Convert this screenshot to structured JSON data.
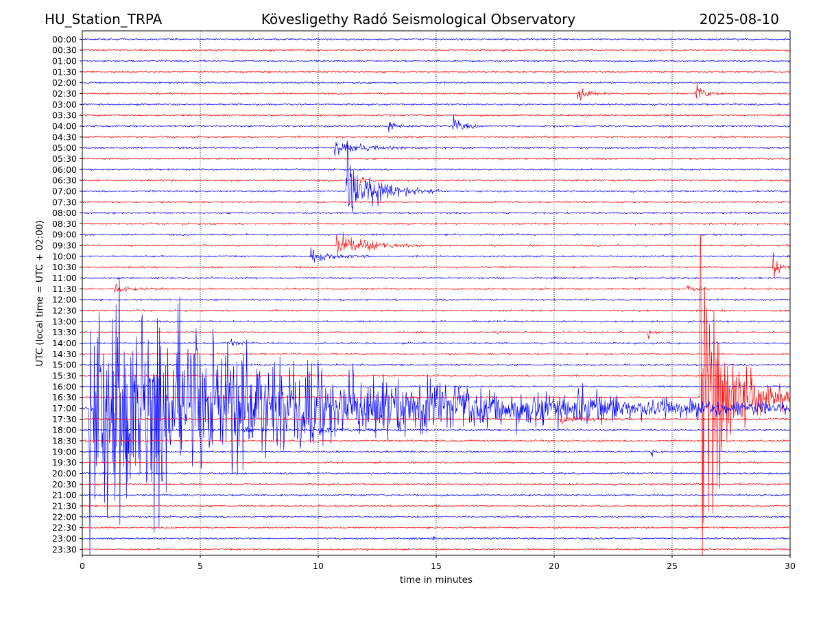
{
  "header": {
    "station": "HU_Station_TRPA",
    "observatory": "Kövesligethy Radó Seismological Observatory",
    "date": "2025-08-10"
  },
  "chart_data": {
    "type": "line",
    "title": "Kövesligethy Radó Seismological Observatory",
    "xlabel": "time in minutes",
    "ylabel": "UTC (local time = UTC + 02:00)",
    "xlim": [
      0,
      30
    ],
    "xticks": [
      "0",
      "5",
      "10",
      "15",
      "20",
      "25",
      "30"
    ],
    "xtick_values": [
      0,
      5,
      10,
      15,
      20,
      25,
      30
    ],
    "vertical_grid": "dotted",
    "trace_colors": [
      "#0000ff",
      "#ff0000"
    ],
    "rows": [
      "00:00",
      "00:30",
      "01:00",
      "01:30",
      "02:00",
      "02:30",
      "03:00",
      "03:30",
      "04:00",
      "04:30",
      "05:00",
      "05:30",
      "06:00",
      "06:30",
      "07:00",
      "07:30",
      "08:00",
      "08:30",
      "09:00",
      "09:30",
      "10:00",
      "10:30",
      "11:00",
      "11:30",
      "12:00",
      "12:30",
      "13:00",
      "13:30",
      "14:00",
      "14:30",
      "15:00",
      "15:30",
      "16:00",
      "16:30",
      "17:00",
      "17:30",
      "18:00",
      "18:30",
      "19:00",
      "19:30",
      "20:00",
      "20:30",
      "21:00",
      "21:30",
      "22:00",
      "22:30",
      "23:00",
      "23:30"
    ],
    "events": [
      {
        "row": "02:30",
        "start_min": 21.0,
        "amplitude_rows": 1.0,
        "duration_min": 1.4
      },
      {
        "row": "02:30",
        "start_min": 26.0,
        "amplitude_rows": 0.9,
        "duration_min": 1.3
      },
      {
        "row": "04:00",
        "start_min": 13.0,
        "amplitude_rows": 0.4,
        "duration_min": 1.2
      },
      {
        "row": "04:00",
        "start_min": 15.7,
        "amplitude_rows": 0.7,
        "duration_min": 1.5
      },
      {
        "row": "05:00",
        "start_min": 10.7,
        "amplitude_rows": 0.7,
        "duration_min": 4.0
      },
      {
        "row": "07:00",
        "start_min": 11.2,
        "amplitude_rows": 3.2,
        "duration_min": 4.0
      },
      {
        "row": "06:30",
        "start_min": 11.8,
        "amplitude_rows": 0.3,
        "duration_min": 1.2
      },
      {
        "row": "09:30",
        "start_min": 10.8,
        "amplitude_rows": 1.6,
        "duration_min": 3.5
      },
      {
        "row": "10:00",
        "start_min": 9.7,
        "amplitude_rows": 0.8,
        "duration_min": 2.5
      },
      {
        "row": "10:30",
        "start_min": 29.3,
        "amplitude_rows": 1.2,
        "duration_min": 0.7
      },
      {
        "row": "11:30",
        "start_min": 1.4,
        "amplitude_rows": 0.5,
        "duration_min": 2.0
      },
      {
        "row": "11:30",
        "start_min": 25.6,
        "amplitude_rows": 0.3,
        "duration_min": 1.5
      },
      {
        "row": "13:30",
        "start_min": 24.0,
        "amplitude_rows": 0.3,
        "duration_min": 1.0
      },
      {
        "row": "14:00",
        "start_min": 6.3,
        "amplitude_rows": 0.3,
        "duration_min": 1.0
      },
      {
        "row": "17:00",
        "start_min": 0.3,
        "amplitude_rows": 13.5,
        "duration_min": 29.7
      },
      {
        "row": "17:00",
        "start_min": 9.8,
        "amplitude_rows": 0.9,
        "duration_min": 1.5
      },
      {
        "row": "17:00",
        "start_min": 21.0,
        "amplitude_rows": 1.4,
        "duration_min": 1.8
      },
      {
        "row": "16:30",
        "start_min": 26.2,
        "amplitude_rows": 16.0,
        "duration_min": 3.8
      },
      {
        "row": "17:30",
        "start_min": 20.3,
        "amplitude_rows": 0.4,
        "duration_min": 3.0
      },
      {
        "row": "18:00",
        "start_min": 6.9,
        "amplitude_rows": 0.4,
        "duration_min": 1.0
      },
      {
        "row": "18:00",
        "start_min": 10.0,
        "amplitude_rows": 0.3,
        "duration_min": 5.0
      },
      {
        "row": "19:00",
        "start_min": 24.1,
        "amplitude_rows": 0.3,
        "duration_min": 0.8
      },
      {
        "row": "23:00",
        "start_min": 14.8,
        "amplitude_rows": 0.3,
        "duration_min": 0.6
      }
    ]
  }
}
